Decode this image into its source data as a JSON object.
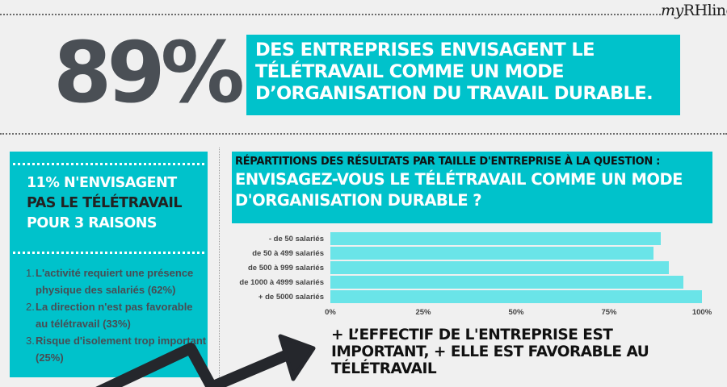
{
  "brand": {
    "prefix": "my",
    "name": "RHline"
  },
  "headline": {
    "stat": "89%",
    "lines": [
      "DES ENTREPRISES ENVISAGENT LE",
      "TÉLÉTRAVAIL COMME UN MODE",
      "D’ORGANISATION DU TRAVAIL DURABLE."
    ]
  },
  "left_panel": {
    "title_lines": [
      "11% N'ENVISAGENT",
      "PAS LE TÉLÉTRAVAIL",
      "POUR 3 RAISONS"
    ],
    "reasons": [
      {
        "num": "1.",
        "text": "L'activité requiert une présence physique des salariés (62%)"
      },
      {
        "num": "2.",
        "text": "La direction n'est pas favorable au télétravail (33%)"
      },
      {
        "num": "3.",
        "text": "Risque d'isolement trop important (25%)"
      }
    ]
  },
  "right_panel": {
    "subtitle": "RÉPARTITIONS DES RÉSULTATS PAR TAILLE D'ENTREPRISE À LA QUESTION :",
    "question_lines": [
      "ENVISAGEZ-VOUS LE TÉLÉTRAVAIL COMME UN MODE",
      "D'ORGANISATION DURABLE ?"
    ]
  },
  "conclusion_lines": [
    "+ L’EFFECTIF DE L'ENTREPRISE EST",
    "IMPORTANT, + ELLE EST FAVORABLE AU",
    "TÉLÉTRAVAIL"
  ],
  "colors": {
    "teal": "#00c2cb",
    "bar": "#6ae4e8",
    "dark": "#4a4f55"
  },
  "chart_data": {
    "type": "bar",
    "orientation": "horizontal",
    "title": "Répartitions des résultats par taille d'entreprise à la question : Envisagez-vous le télétravail comme un mode d'organisation durable ?",
    "categories": [
      "- de 50 salariés",
      "de 50 à 499 salariés",
      "de 500 à 999 salariés",
      "de 1000 à 4999 salariés",
      "+ de 5000 salariés"
    ],
    "values": [
      89,
      87,
      91,
      95,
      100
    ],
    "xlabel": "",
    "ylabel": "",
    "xlim": [
      0,
      100
    ],
    "xticks": [
      "0%",
      "25%",
      "50%",
      "75%",
      "100%"
    ],
    "grid": false,
    "legend": null
  }
}
